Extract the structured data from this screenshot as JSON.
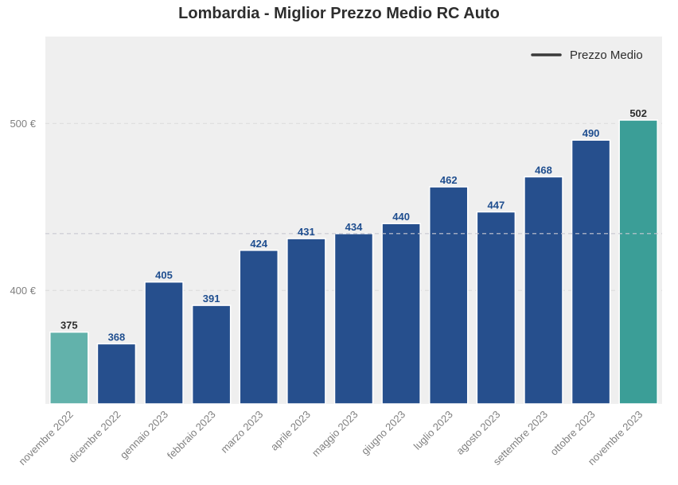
{
  "chart_data": {
    "type": "bar",
    "title": "Lombardia - Miglior Prezzo Medio RC Auto",
    "xlabel": "",
    "ylabel": "",
    "categories": [
      "novembre 2022",
      "dicembre 2022",
      "gennaio 2023",
      "febbraio 2023",
      "marzo 2023",
      "aprile 2023",
      "maggio 2023",
      "giugno 2023",
      "luglio 2023",
      "agosto 2023",
      "settembre 2023",
      "ottobre 2023",
      "novembre 2023"
    ],
    "values": [
      375,
      368,
      405,
      391,
      424,
      431,
      434,
      440,
      462,
      447,
      468,
      490,
      502
    ],
    "value_labels": [
      "375",
      "368",
      "405",
      "391",
      "424",
      "431",
      "434",
      "440",
      "462",
      "447",
      "468",
      "490",
      "502"
    ],
    "bar_colors": [
      "#62b2ab",
      "#264f8d",
      "#264f8d",
      "#264f8d",
      "#264f8d",
      "#264f8d",
      "#264f8d",
      "#264f8d",
      "#264f8d",
      "#264f8d",
      "#264f8d",
      "#264f8d",
      "#3b9e97"
    ],
    "label_colors": [
      "#2d2d2d",
      "#1f4e8f",
      "#1f4e8f",
      "#1f4e8f",
      "#1f4e8f",
      "#1f4e8f",
      "#1f4e8f",
      "#1f4e8f",
      "#1f4e8f",
      "#1f4e8f",
      "#1f4e8f",
      "#1f4e8f",
      "#2d2d2d"
    ],
    "ylim": [
      332,
      552
    ],
    "yticks": [
      400,
      500
    ],
    "ytick_labels": [
      "400 €",
      "500 €"
    ],
    "average": 434,
    "grid": true,
    "legend": {
      "position": "top-right",
      "entries": [
        {
          "label": "Prezzo Medio",
          "color": "#3a3a3a"
        }
      ]
    },
    "colors": {
      "plot_background": "#efefef",
      "grid": "#dcdcdc",
      "average_line": "#c8c8d2"
    }
  }
}
